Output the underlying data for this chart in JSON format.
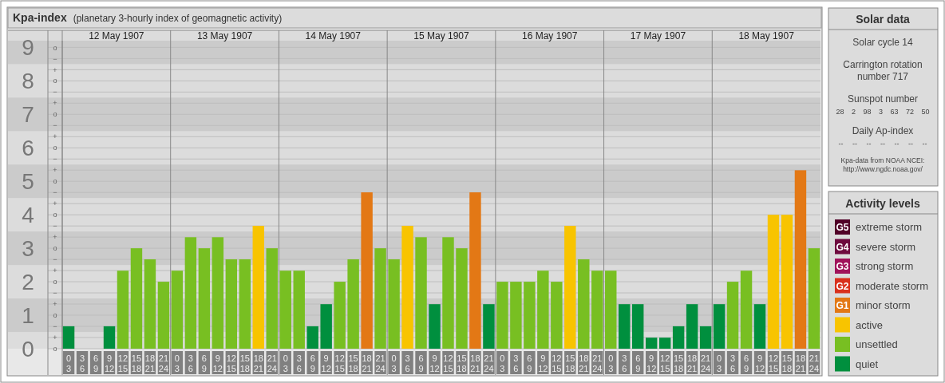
{
  "chart_data": [
    {
      "type": "bar",
      "title": "Kpa-index",
      "subtitle": "(planetary 3-hourly index of geomagnetic activity)",
      "stacked": true,
      "grid": true,
      "legend": "right",
      "legend_title": "Activity levels",
      "categories": [
        "0\n3",
        "3\n6",
        "6\n9",
        "9\n12",
        "12\n15",
        "15\n18",
        "18\n21",
        "21\n24",
        "0\n3",
        "3\n6",
        "6\n9",
        "9\n12",
        "12\n15",
        "15\n18",
        "18\n21",
        "21\n24",
        "0\n3",
        "3\n6",
        "6\n9",
        "9\n12",
        "12\n15",
        "15\n18",
        "18\n21",
        "21\n24",
        "0\n3",
        "3\n6",
        "6\n9",
        "9\n12",
        "12\n15",
        "15\n18",
        "18\n21",
        "21\n24",
        "0\n3",
        "3\n6",
        "6\n9",
        "9\n12",
        "12\n15",
        "15\n18",
        "18\n21",
        "21\n24",
        "0\n3",
        "3\n6",
        "6\n9",
        "9\n12",
        "12\n15",
        "15\n18",
        "18\n21",
        "21\n24",
        "0\n3",
        "3\n6",
        "6\n9",
        "9\n12",
        "12\n15",
        "15\n18",
        "18\n21",
        "21\n24"
      ],
      "ylim": [
        0,
        9.2
      ],
      "yticks": [
        0,
        1,
        2,
        3,
        4,
        5,
        6,
        7,
        8,
        9
      ],
      "bands": [
        {
          "axis": "y",
          "from": 0.5,
          "to": 1.5,
          "color": "#cbcbcb"
        },
        {
          "axis": "y",
          "from": 2.5,
          "to": 3.5,
          "color": "#cbcbcb"
        },
        {
          "axis": "y",
          "from": 4.5,
          "to": 5.5,
          "color": "#cbcbcb"
        },
        {
          "axis": "y",
          "from": 6.5,
          "to": 7.5,
          "color": "#cbcbcb"
        },
        {
          "axis": "y",
          "from": 8.5,
          "to": 9.2,
          "color": "#cbcbcb"
        }
      ],
      "y2_categories": [
        "o",
        "−",
        "+",
        "o",
        "−",
        "+",
        "o",
        "−",
        "+",
        "o",
        "−",
        "+",
        "o",
        "−",
        "+",
        "o",
        "−",
        "+",
        "o",
        "−",
        "+",
        "o",
        "−",
        "+",
        "o",
        "−",
        "+",
        "o"
      ],
      "annotations": [
        "12 May 1907",
        "13 May 1907",
        "14 May 1907",
        "15 May 1907",
        "16 May 1907",
        "17 May 1907",
        "18 May 1907",
        "G5",
        "G4",
        "G3",
        "G2",
        "G1"
      ],
      "series": [
        {
          "name": "extreme storm",
          "color": "#510027",
          "values": [
            null,
            null,
            null,
            null,
            null,
            null,
            null,
            null,
            null,
            null,
            null,
            null,
            null,
            null,
            null,
            null,
            null,
            null,
            null,
            null,
            null,
            null,
            null,
            null,
            null,
            null,
            null,
            null,
            null,
            null,
            null,
            null,
            null,
            null,
            null,
            null,
            null,
            null,
            null,
            null,
            null,
            null,
            null,
            null,
            null,
            null,
            null,
            null,
            null,
            null,
            null,
            null,
            null,
            null,
            null,
            null
          ]
        },
        {
          "name": "severe storm",
          "color": "#6e0a3e",
          "values": [
            null,
            null,
            null,
            null,
            null,
            null,
            null,
            null,
            null,
            null,
            null,
            null,
            null,
            null,
            null,
            null,
            null,
            null,
            null,
            null,
            null,
            null,
            null,
            null,
            null,
            null,
            null,
            null,
            null,
            null,
            null,
            null,
            null,
            null,
            null,
            null,
            null,
            null,
            null,
            null,
            null,
            null,
            null,
            null,
            null,
            null,
            null,
            null,
            null,
            null,
            null,
            null,
            null,
            null,
            null,
            null
          ]
        },
        {
          "name": "strong storm",
          "color": "#a0125a",
          "values": [
            null,
            null,
            null,
            null,
            null,
            null,
            null,
            null,
            null,
            null,
            null,
            null,
            null,
            null,
            null,
            null,
            null,
            null,
            null,
            null,
            null,
            null,
            null,
            null,
            null,
            null,
            null,
            null,
            null,
            null,
            null,
            null,
            null,
            null,
            null,
            null,
            null,
            null,
            null,
            null,
            null,
            null,
            null,
            null,
            null,
            null,
            null,
            null,
            null,
            null,
            null,
            null,
            null,
            null,
            null,
            null
          ]
        },
        {
          "name": "moderate storm",
          "color": "#d9301d",
          "values": [
            null,
            null,
            null,
            null,
            null,
            null,
            null,
            null,
            null,
            null,
            null,
            null,
            null,
            null,
            null,
            null,
            null,
            null,
            null,
            null,
            null,
            null,
            null,
            null,
            null,
            null,
            null,
            null,
            null,
            null,
            null,
            null,
            null,
            null,
            null,
            null,
            null,
            null,
            null,
            null,
            null,
            null,
            null,
            null,
            null,
            null,
            null,
            null,
            null,
            null,
            null,
            null,
            null,
            null,
            null,
            null
          ]
        },
        {
          "name": "minor storm",
          "color": "#e37815",
          "values": [
            null,
            null,
            null,
            null,
            null,
            null,
            null,
            null,
            null,
            null,
            null,
            null,
            null,
            null,
            null,
            null,
            null,
            null,
            null,
            null,
            null,
            null,
            4.67,
            null,
            null,
            null,
            null,
            null,
            null,
            null,
            4.67,
            null,
            null,
            null,
            null,
            null,
            null,
            null,
            null,
            null,
            null,
            null,
            null,
            null,
            null,
            null,
            null,
            null,
            null,
            null,
            null,
            null,
            null,
            null,
            5.33,
            null
          ]
        },
        {
          "name": "active",
          "color": "#f8c400",
          "values": [
            null,
            null,
            null,
            null,
            null,
            null,
            null,
            null,
            null,
            null,
            null,
            null,
            null,
            null,
            3.67,
            null,
            null,
            null,
            null,
            null,
            null,
            null,
            null,
            null,
            null,
            3.67,
            null,
            null,
            null,
            null,
            null,
            null,
            null,
            null,
            null,
            null,
            null,
            3.67,
            null,
            null,
            null,
            null,
            null,
            null,
            null,
            null,
            null,
            null,
            null,
            null,
            null,
            null,
            4,
            4,
            null,
            null
          ]
        },
        {
          "name": "unsettled",
          "color": "#78bf22",
          "values": [
            null,
            null,
            null,
            null,
            2.33,
            3,
            2.67,
            2,
            2.33,
            3.33,
            3,
            3.33,
            2.67,
            2.67,
            null,
            3,
            2.33,
            2.33,
            null,
            null,
            2,
            2.67,
            null,
            3,
            2.67,
            null,
            3.33,
            null,
            3.33,
            3,
            null,
            null,
            2,
            2,
            2,
            2.33,
            2,
            null,
            2.67,
            2.33,
            2.33,
            null,
            null,
            null,
            null,
            null,
            null,
            null,
            null,
            2,
            2.33,
            null,
            null,
            null,
            null,
            3
          ]
        },
        {
          "name": "quiet",
          "color": "#008f3e",
          "values": [
            0.67,
            0,
            0,
            0.67,
            null,
            null,
            null,
            null,
            null,
            null,
            null,
            null,
            null,
            null,
            null,
            null,
            null,
            null,
            0.67,
            1.33,
            null,
            null,
            null,
            null,
            null,
            null,
            null,
            1.33,
            null,
            null,
            null,
            1.33,
            null,
            null,
            null,
            null,
            null,
            null,
            null,
            null,
            null,
            1.33,
            1.33,
            0.33,
            0.33,
            0.67,
            1.33,
            0.67,
            1.33,
            null,
            null,
            1.33,
            null,
            null,
            null,
            null
          ]
        }
      ]
    },
    {
      "type": "other",
      "title": "Solar data",
      "annotations": [
        "Solar cycle 14",
        "Carrington rotation number 717",
        "Sunspot number",
        "28 2 98 3 63 72 50",
        "Daily Ap-index",
        "-- -- -- -- -- -- --",
        "Kpa-data from NOAA NCEI: http://www.ngdc.noaa.gov/"
      ]
    }
  ]
}
